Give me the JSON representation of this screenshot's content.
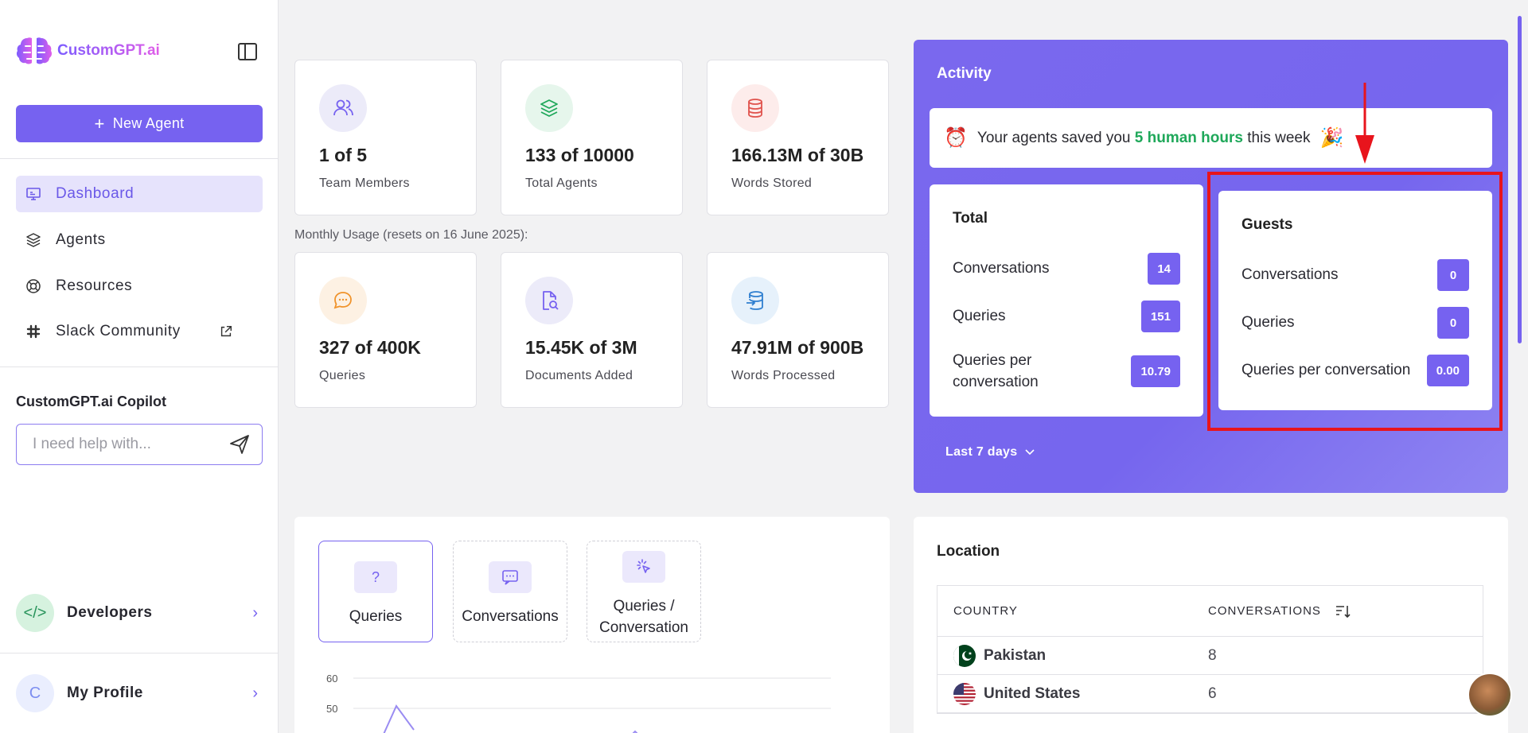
{
  "brand": {
    "name": "CustomGPT.ai"
  },
  "sidebar": {
    "new_agent_label": "New Agent",
    "items": [
      {
        "label": "Dashboard",
        "icon": "monitor-icon",
        "active": true
      },
      {
        "label": "Agents",
        "icon": "layers-icon",
        "active": false
      },
      {
        "label": "Resources",
        "icon": "lifebuoy-icon",
        "active": false
      },
      {
        "label": "Slack Community",
        "icon": "slack-icon",
        "active": false
      }
    ],
    "copilot": {
      "title": "CustomGPT.ai Copilot",
      "placeholder": "I need help with..."
    },
    "developers_label": "Developers",
    "profile_initial": "C",
    "profile_label": "My Profile"
  },
  "stats": {
    "team_members": {
      "value": "1 of 5",
      "label": "Team Members"
    },
    "total_agents": {
      "value": "133 of 10000",
      "label": "Total Agents"
    },
    "words_stored": {
      "value": "166.13M of 30B",
      "label": "Words Stored"
    },
    "monthly_note": "Monthly Usage (resets on 16 June 2025):",
    "queries": {
      "value": "327 of 400K",
      "label": "Queries"
    },
    "documents_added": {
      "value": "15.45K of 3M",
      "label": "Documents Added"
    },
    "words_processed": {
      "value": "47.91M of 900B",
      "label": "Words Processed"
    }
  },
  "activity": {
    "title": "Activity",
    "saved_prefix": "Your agents saved you",
    "saved_highlight": "5 human hours",
    "saved_suffix": "this week",
    "total": {
      "title": "Total",
      "conversations_label": "Conversations",
      "conversations": "14",
      "queries_label": "Queries",
      "queries": "151",
      "qpc_label": "Queries per conversation",
      "qpc": "10.79"
    },
    "guests": {
      "title": "Guests",
      "conversations_label": "Conversations",
      "conversations": "0",
      "queries_label": "Queries",
      "queries": "0",
      "qpc_label": "Queries per conversation",
      "qpc": "0.00"
    },
    "range_label": "Last 7 days"
  },
  "chart_tabs": {
    "queries": "Queries",
    "conversations": "Conversations",
    "qpc_line1": "Queries /",
    "qpc_line2": "Conversation"
  },
  "chart_data": {
    "type": "line",
    "y_ticks_visible": [
      "60",
      "50"
    ],
    "note": "partially visible"
  },
  "location": {
    "title": "Location",
    "col_country": "COUNTRY",
    "col_conversations": "CONVERSATIONS",
    "rows": [
      {
        "country": "Pakistan",
        "conversations": "8"
      },
      {
        "country": "United States",
        "conversations": "6"
      }
    ]
  },
  "colors": {
    "accent": "#7662f0",
    "highlight_green": "#1fa85a",
    "annotation_red": "#e8141c"
  }
}
